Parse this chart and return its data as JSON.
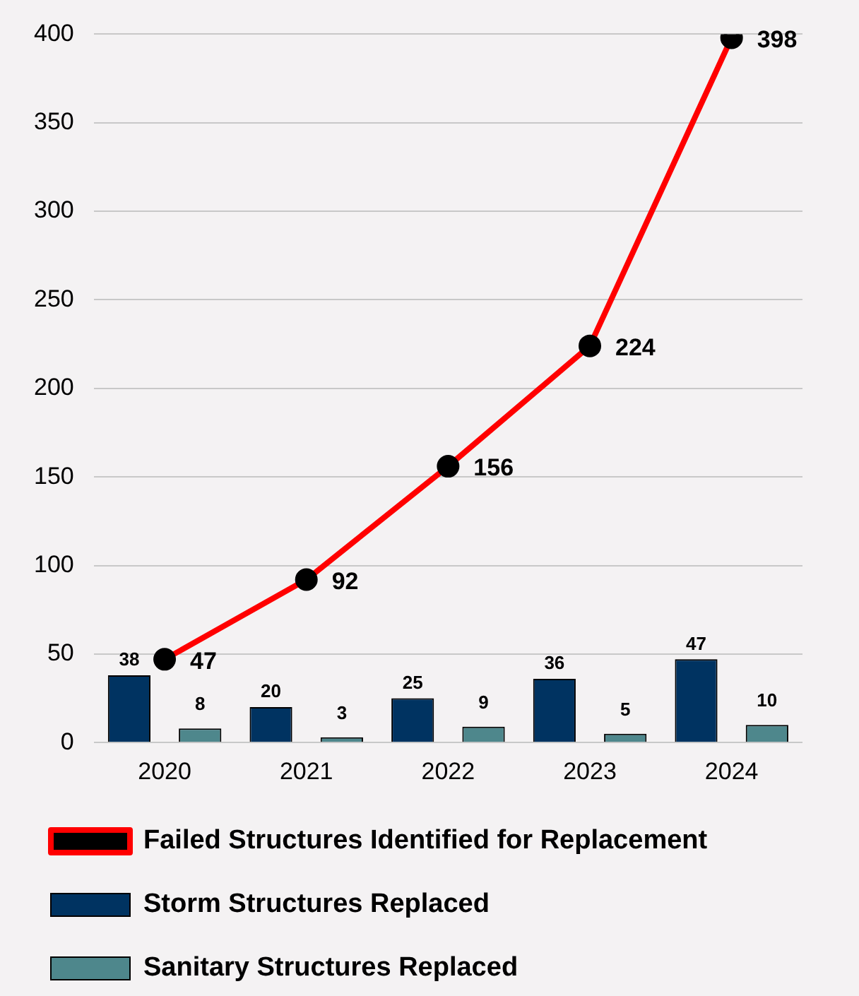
{
  "chart_data": {
    "type": "bar",
    "categories": [
      "2020",
      "2021",
      "2022",
      "2023",
      "2024"
    ],
    "series": [
      {
        "name": "Storm Structures Replaced",
        "color": "#003361",
        "values": [
          38,
          20,
          25,
          36,
          47
        ]
      },
      {
        "name": "Sanitary Structures Replaced",
        "color": "#4e878c",
        "values": [
          8,
          3,
          9,
          5,
          10
        ]
      },
      {
        "name": "Failed Structures Identified for Replacement",
        "type": "line",
        "color": "#ff0000",
        "values": [
          47,
          92,
          156,
          224,
          398
        ],
        "marker": "circle"
      }
    ],
    "ylim": [
      0,
      400
    ],
    "yticks": [
      0,
      50,
      100,
      150,
      200,
      250,
      300,
      350,
      400
    ],
    "grid": "y",
    "legend": "bottom",
    "data_labels": true
  }
}
